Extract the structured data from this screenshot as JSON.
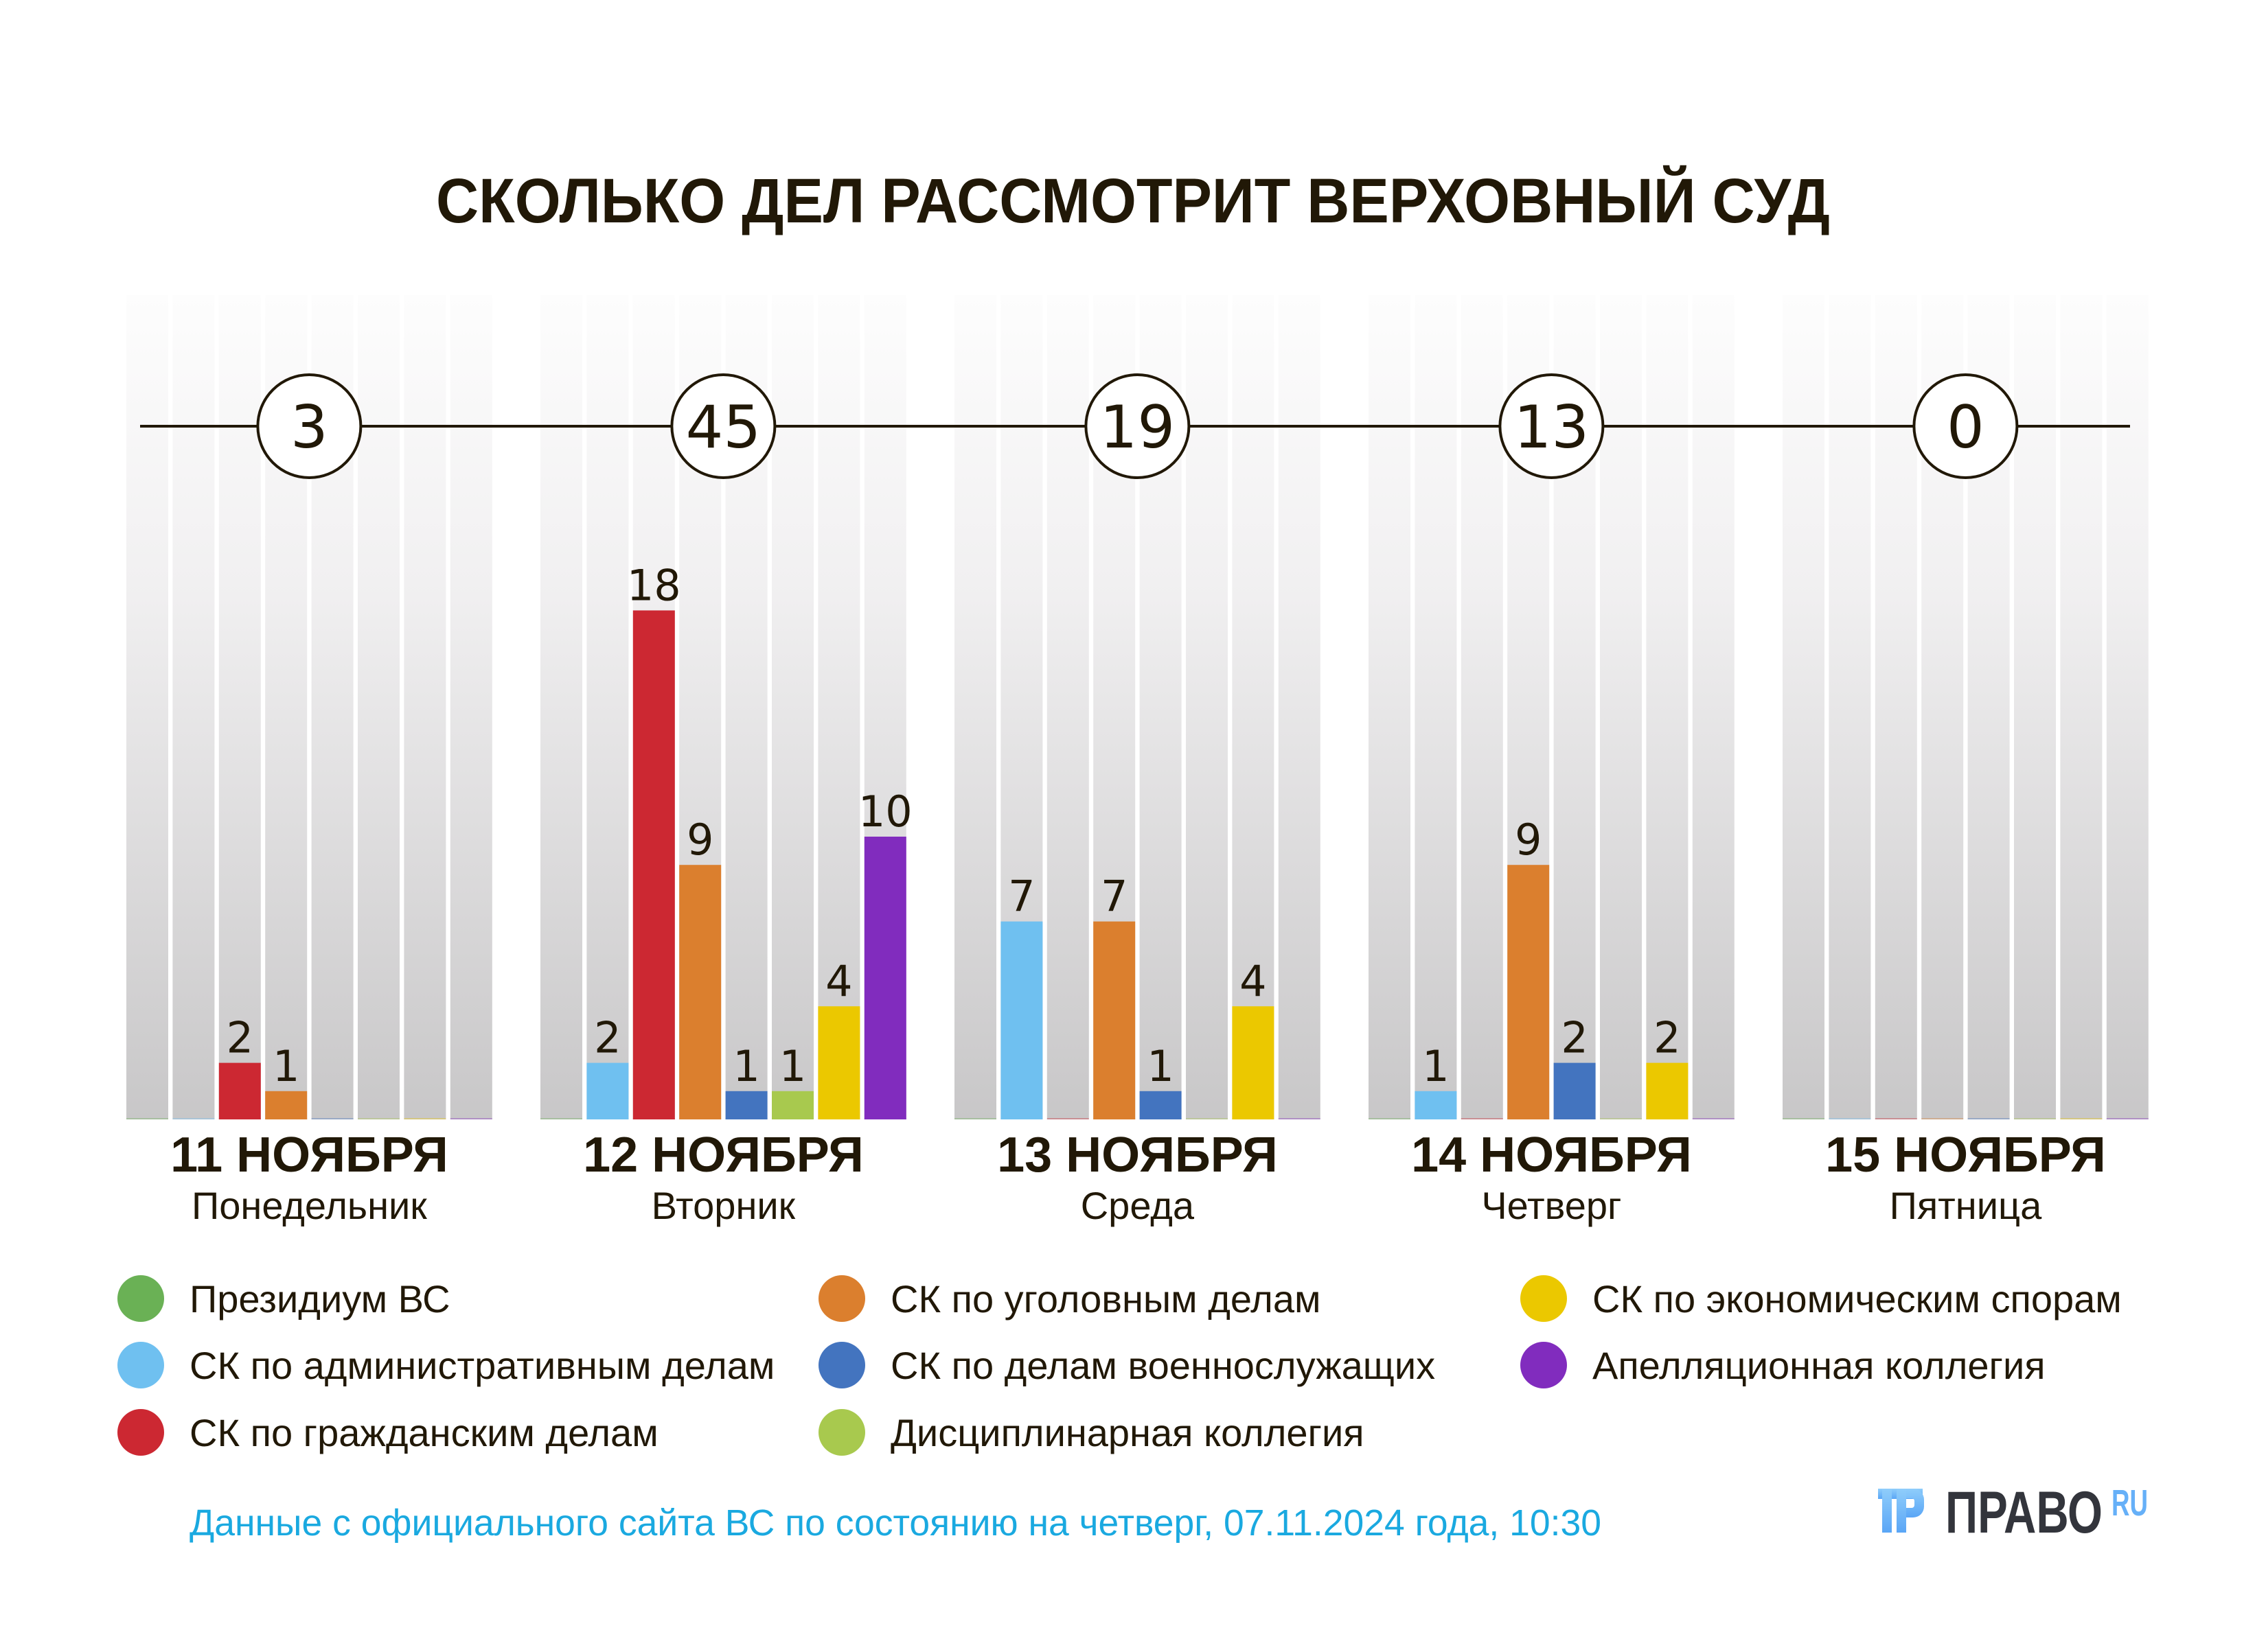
{
  "chart_data": {
    "type": "bar",
    "title": "СКОЛЬКО ДЕЛ РАССМОТРИТ ВЕРХОВНЫЙ СУД",
    "xlabel": "",
    "ylabel": "",
    "ylim": [
      0,
      18
    ],
    "grid": false,
    "legend_position": "bottom",
    "categories": [
      {
        "date": "11 НОЯБРЯ",
        "weekday": "Понедельник",
        "total": "3"
      },
      {
        "date": "12 НОЯБРЯ",
        "weekday": "Вторник",
        "total": "45"
      },
      {
        "date": "13 НОЯБРЯ",
        "weekday": "Среда",
        "total": "19"
      },
      {
        "date": "14 НОЯБРЯ",
        "weekday": "Четверг",
        "total": "13"
      },
      {
        "date": "15 НОЯБРЯ",
        "weekday": "Пятница",
        "total": "0"
      }
    ],
    "series": [
      {
        "name": "Президиум ВС",
        "color": "#6ab155",
        "values": [
          0,
          0,
          0,
          0,
          0
        ]
      },
      {
        "name": "СК по административным делам",
        "color": "#6fc0f0",
        "values": [
          0,
          2,
          7,
          1,
          0
        ]
      },
      {
        "name": "СК по гражданским делам",
        "color": "#cc2832",
        "values": [
          2,
          18,
          0,
          0,
          0
        ]
      },
      {
        "name": "СК по уголовным делам",
        "color": "#db7f2e",
        "values": [
          1,
          9,
          7,
          9,
          0
        ]
      },
      {
        "name": "СК по делам военнослужащих",
        "color": "#4374bf",
        "values": [
          0,
          1,
          1,
          2,
          0
        ]
      },
      {
        "name": "Дисциплинарная коллегия",
        "color": "#a8c94e",
        "values": [
          0,
          1,
          0,
          0,
          0
        ]
      },
      {
        "name": "СК по экономическим спорам",
        "color": "#ebc800",
        "values": [
          0,
          4,
          4,
          2,
          0
        ]
      },
      {
        "name": "Апелляционная коллегия",
        "color": "#812cbe",
        "values": [
          0,
          10,
          0,
          0,
          0
        ]
      }
    ]
  },
  "footer": {
    "source": "Данные с официального сайта ВС по состоянию на четверг, 07.11.2024 года, 10:30",
    "color": "#1aa9e0"
  },
  "logo": {
    "name": "ПРАВО",
    "suffix": "RU",
    "icon": "pravo-logo-icon",
    "text_color": "#33353c",
    "accent_color": "#66b0f8"
  },
  "colors": {
    "text": "#211807",
    "column_top": "#fdfdfd",
    "column_bottom": "#c8c7c8"
  }
}
